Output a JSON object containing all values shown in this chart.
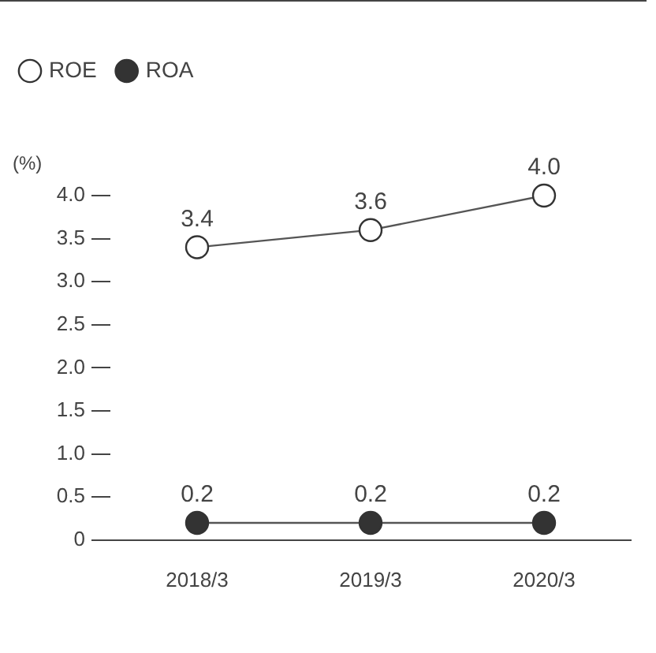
{
  "chart_data": {
    "type": "line",
    "ylabel": "(%)",
    "categories": [
      "2018/3",
      "2019/3",
      "2020/3"
    ],
    "series": [
      {
        "name": "ROE",
        "color": "#ffffff",
        "values": [
          3.4,
          3.6,
          4.0
        ],
        "value_labels": [
          "3.4",
          "3.6",
          "4.0"
        ]
      },
      {
        "name": "ROA",
        "color": "#333333",
        "values": [
          0.2,
          0.2,
          0.2
        ],
        "value_labels": [
          "0.2",
          "0.2",
          "0.2"
        ]
      }
    ],
    "ylim": [
      0,
      4
    ],
    "yticks": [
      {
        "value": 0,
        "label": "0"
      },
      {
        "value": 0.5,
        "label": "0.5"
      },
      {
        "value": 1,
        "label": "1.0"
      },
      {
        "value": 1.5,
        "label": "1.5"
      },
      {
        "value": 2,
        "label": "2.0"
      },
      {
        "value": 2.5,
        "label": "2.5"
      },
      {
        "value": 3,
        "label": "3.0"
      },
      {
        "value": 3.5,
        "label": "3.5"
      },
      {
        "value": 4,
        "label": "4.0"
      }
    ],
    "grid": false,
    "legend": "top left",
    "marker": "circle",
    "line_style": "solid"
  }
}
